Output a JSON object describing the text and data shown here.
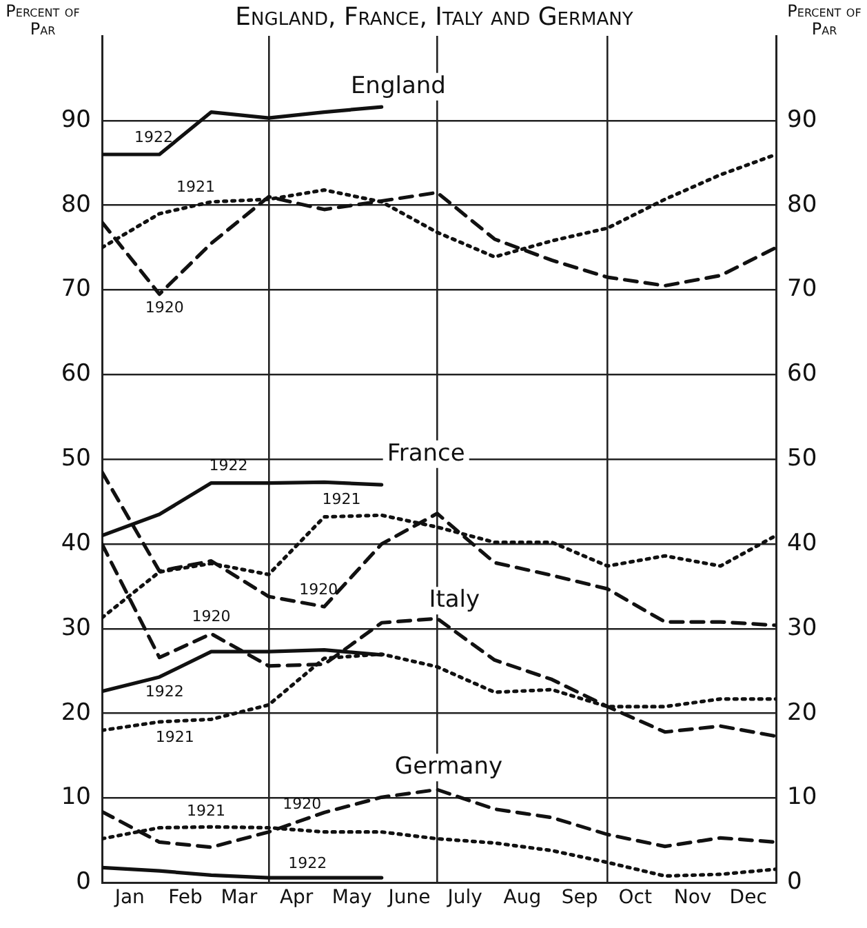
{
  "chart_data": {
    "type": "line",
    "title": "England, France, Italy and Germany",
    "ylabel": "Percent of Par",
    "y2label": "Percent of Par",
    "x": [
      "--01-01",
      "--02-01",
      "--03-01",
      "--04-01",
      "--05-01",
      "--06-01",
      "--07-01",
      "--08-01",
      "--09-01",
      "--10-01",
      "--11-01",
      "--12-01",
      "--12-31"
    ],
    "xlim": [
      "--01-01",
      "--12-31"
    ],
    "xticks": [
      {
        "value": "--01-01",
        "label": null
      },
      {
        "value": "--01-16",
        "label": "Jan"
      },
      {
        "value": "--02-15",
        "label": "Feb"
      },
      {
        "value": "--03-16",
        "label": "Mar"
      },
      {
        "value": "--04-01",
        "label": null
      },
      {
        "value": "--04-16",
        "label": "Apr"
      },
      {
        "value": "--05-16",
        "label": "May"
      },
      {
        "value": "--06-16",
        "label": "June"
      },
      {
        "value": "--07-01",
        "label": null
      },
      {
        "value": "--07-16",
        "label": "July"
      },
      {
        "value": "--08-16",
        "label": "Aug"
      },
      {
        "value": "--09-16",
        "label": "Sep"
      },
      {
        "value": "--10-01",
        "label": null
      },
      {
        "value": "--10-16",
        "label": "Oct"
      },
      {
        "value": "--11-16",
        "label": "Nov"
      },
      {
        "value": "--12-16",
        "label": "Dec"
      },
      {
        "value": "--12-31",
        "label": null
      }
    ],
    "ylim": [
      0,
      100
    ],
    "yticks": [
      0,
      10,
      20,
      30,
      40,
      50,
      60,
      70,
      80,
      90
    ],
    "y2lim": [
      0,
      100
    ],
    "y2ticks": [
      0,
      10,
      20,
      30,
      40,
      50,
      60,
      70,
      80,
      90
    ],
    "grid": true,
    "legend": false,
    "marker": "none",
    "series": [
      {
        "name": "1922",
        "color": "#111111",
        "line_style": "solid",
        "x": [
          "--01-01",
          "--02-01",
          "--03-01",
          "--04-01",
          "--05-01",
          "--06-01"
        ],
        "values": [
          86,
          86,
          91,
          90.3,
          91,
          91.6
        ]
      },
      {
        "name": "1921",
        "color": "#111111",
        "line_style": "dotted",
        "values": [
          75,
          79,
          80.4,
          80.7,
          81.8,
          80.4,
          76.8,
          73.9,
          75.8,
          77.3,
          80.7,
          83.6,
          86
        ]
      },
      {
        "name": "1920",
        "color": "#111111",
        "line_style": "dashed",
        "values": [
          78,
          69.5,
          75.5,
          81,
          79.5,
          80.5,
          81.5,
          76,
          73.5,
          71.5,
          70.5,
          71.7,
          75
        ]
      },
      {
        "name": "1922",
        "color": "#111111",
        "line_style": "solid",
        "x": [
          "--01-01",
          "--02-01",
          "--03-01",
          "--04-01",
          "--05-01",
          "--06-01"
        ],
        "values": [
          41,
          43.5,
          47.2,
          47.2,
          47.3,
          47
        ]
      },
      {
        "name": "1921",
        "color": "#111111",
        "line_style": "dotted",
        "values": [
          31.3,
          36.7,
          37.7,
          36.4,
          43.2,
          43.4,
          42,
          40.2,
          40.2,
          37.4,
          38.6,
          37.4,
          41
        ]
      },
      {
        "name": "1920",
        "color": "#111111",
        "line_style": "dashed",
        "values": [
          48.5,
          36.8,
          38,
          33.8,
          32.6,
          40,
          43.6,
          37.8,
          36.3,
          34.7,
          30.8,
          30.8,
          30.4
        ]
      },
      {
        "name": "1922",
        "color": "#111111",
        "line_style": "solid",
        "x": [
          "--01-01",
          "--02-01",
          "--03-01",
          "--04-01",
          "--05-01",
          "--06-01"
        ],
        "values": [
          22.6,
          24.3,
          27.3,
          27.3,
          27.5,
          26.9
        ]
      },
      {
        "name": "1921",
        "color": "#111111",
        "line_style": "dotted",
        "values": [
          18,
          19,
          19.3,
          21,
          26.5,
          27,
          25.5,
          22.5,
          22.8,
          20.8,
          20.8,
          21.7,
          21.7
        ]
      },
      {
        "name": "1920",
        "color": "#111111",
        "line_style": "dashed",
        "values": [
          40,
          26.6,
          29.4,
          25.6,
          25.8,
          30.7,
          31.2,
          26.3,
          24,
          20.8,
          17.8,
          18.5,
          17.3
        ]
      },
      {
        "name": "1922",
        "color": "#111111",
        "line_style": "solid",
        "x": [
          "--01-01",
          "--02-01",
          "--03-01",
          "--04-01",
          "--05-01",
          "--06-01"
        ],
        "values": [
          1.8,
          1.4,
          0.9,
          0.6,
          0.6,
          0.6
        ]
      },
      {
        "name": "1921",
        "color": "#111111",
        "line_style": "dotted",
        "values": [
          5.2,
          6.5,
          6.6,
          6.5,
          6,
          6,
          5.2,
          4.7,
          3.8,
          2.4,
          0.8,
          1,
          1.6
        ]
      },
      {
        "name": "1920",
        "color": "#111111",
        "line_style": "dashed",
        "values": [
          8.4,
          4.8,
          4.2,
          6,
          8.3,
          10.1,
          11,
          8.7,
          7.7,
          5.7,
          4.3,
          5.3,
          4.8
        ]
      }
    ],
    "annotations": [
      "England",
      "France",
      "Italy",
      "Germany"
    ]
  }
}
